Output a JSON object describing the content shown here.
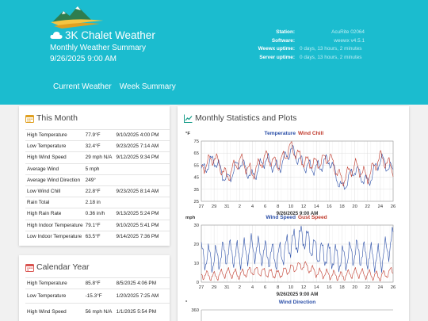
{
  "header": {
    "site_title": "3K Chalet Weather",
    "subtitle": "Monthly Weather Summary",
    "datetime": "9/26/2025 9:00 AM",
    "info": [
      {
        "key": "Station:",
        "value": "AcuRite 02064"
      },
      {
        "key": "Software:",
        "value": "weewx v4.5.1"
      },
      {
        "key": "Weewx uptime:",
        "value": "0 days, 13 hours, 2 minutes"
      },
      {
        "key": "Server uptime:",
        "value": "0 days, 13 hours, 2 minutes"
      }
    ],
    "colors": {
      "accent": "#1bbccf"
    }
  },
  "nav": {
    "items": [
      "Current Weather",
      "Week Summary"
    ]
  },
  "month": {
    "title": "This Month",
    "rows": [
      {
        "label": "High Temperature",
        "value": "77.9°F",
        "date": "9/10/2025 4:00 PM"
      },
      {
        "label": "Low Temperature",
        "value": "32.4°F",
        "date": "9/23/2025 7:14 AM"
      },
      {
        "label": "High Wind Speed",
        "value": "29 mph N/A",
        "date": "9/12/2025 9:34 PM"
      },
      {
        "label": "Average Wind",
        "value": "5 mph",
        "date": ""
      },
      {
        "label": "Average Wind Direction",
        "value": "249°",
        "date": ""
      },
      {
        "label": "Low Wind Chill",
        "value": "22.8°F",
        "date": "9/23/2025 8:14 AM"
      },
      {
        "label": "Rain Total",
        "value": "2.18 in",
        "date": ""
      },
      {
        "label": "High Rain Rate",
        "value": "0.36 in/h",
        "date": "9/13/2025 5:24 PM"
      },
      {
        "label": "High Indoor Temperature",
        "value": "79.1°F",
        "date": "9/10/2025 5:41 PM"
      },
      {
        "label": "Low Indoor Temperature",
        "value": "63.5°F",
        "date": "9/14/2025 7:36 PM"
      }
    ]
  },
  "year": {
    "title": "Calendar Year",
    "rows": [
      {
        "label": "High Temperature",
        "value": "85.8°F",
        "date": "8/5/2025 4:06 PM"
      },
      {
        "label": "Low Temperature",
        "value": "-15.3°F",
        "date": "1/20/2025 7:25 AM"
      },
      {
        "label": "High Wind Speed",
        "value": "56 mph N/A",
        "date": "1/1/2025 5:54 PM"
      }
    ]
  },
  "plots": {
    "title": "Monthly Statistics and Plots",
    "x_ticks": [
      "27",
      "29",
      "31",
      "2",
      "4",
      "6",
      "8",
      "10",
      "12",
      "14",
      "16",
      "18",
      "20",
      "22",
      "24",
      "26"
    ],
    "date_label": "9/26/2025 9:00 AM",
    "temp": {
      "unit": "°F",
      "title_a": "Temperature",
      "title_b": "Wind Chill",
      "y_ticks": [
        "75",
        "65",
        "55",
        "45",
        "35",
        "25"
      ]
    },
    "wind": {
      "unit": "mph",
      "title_a": "Wind Speed",
      "title_b": "Gust Speed",
      "y_ticks": [
        "30",
        "20",
        "10",
        "0"
      ]
    },
    "dir": {
      "unit": "°",
      "title": "Wind Direction",
      "y_ticks": [
        "360"
      ]
    },
    "colors": {
      "series_a": "#2b4fa8",
      "series_b": "#c0392b",
      "grid": "#dddddd"
    }
  },
  "chart_data": [
    {
      "type": "line",
      "title": "Temperature Wind Chill",
      "ylabel": "°F",
      "ylim": [
        25,
        75
      ],
      "x": [
        "27",
        "29",
        "31",
        "2",
        "4",
        "6",
        "8",
        "10",
        "12",
        "14",
        "16",
        "18",
        "20",
        "22",
        "24",
        "26"
      ],
      "series": [
        {
          "name": "Temperature",
          "values": [
            52,
            62,
            45,
            60,
            48,
            62,
            55,
            70,
            58,
            56,
            62,
            42,
            55,
            45,
            62,
            52
          ]
        },
        {
          "name": "Wind Chill",
          "values": [
            50,
            60,
            42,
            58,
            45,
            60,
            52,
            68,
            55,
            52,
            60,
            35,
            52,
            40,
            60,
            50
          ]
        }
      ]
    },
    {
      "type": "line",
      "title": "Wind Speed Gust Speed",
      "ylabel": "mph",
      "ylim": [
        0,
        30
      ],
      "x": [
        "27",
        "29",
        "31",
        "2",
        "4",
        "6",
        "8",
        "10",
        "12",
        "14",
        "16",
        "18",
        "20",
        "22",
        "24",
        "26"
      ],
      "series": [
        {
          "name": "Wind Speed",
          "values": [
            4,
            3,
            5,
            4,
            6,
            5,
            4,
            7,
            9,
            5,
            4,
            3,
            5,
            4,
            3,
            6
          ]
        },
        {
          "name": "Gust Speed",
          "values": [
            14,
            12,
            16,
            14,
            18,
            15,
            13,
            20,
            24,
            16,
            14,
            12,
            16,
            14,
            12,
            22
          ]
        }
      ]
    }
  ]
}
